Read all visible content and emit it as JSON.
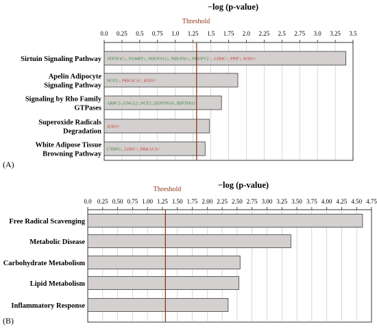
{
  "chart_data": [
    {
      "type": "bar",
      "panel_label": "(A)",
      "title": "−log (p-value)",
      "threshold_label": "Threshold",
      "threshold": 1.3,
      "xlim": [
        0,
        3.5
      ],
      "ticks": [
        "0.0",
        "0.25",
        "0.5",
        "0.75",
        "1.0",
        "1.25",
        "1.5",
        "1.75",
        "2.0",
        "2.25",
        "2.5",
        "2.75",
        "3.0",
        "3.25",
        "3.5"
      ],
      "categories": [
        [
          "Sirtuin Signaling Pathway"
        ],
        [
          "Apelin Adipocyte",
          "Signaling Pathway"
        ],
        [
          "Signaling by Rho Family",
          "GTPases"
        ],
        [
          "Superoxide Radicals",
          "Degradation"
        ],
        [
          "White Adipose Tissue",
          "Browning Pathway"
        ]
      ],
      "values": [
        3.4,
        1.88,
        1.65,
        1.48,
        1.42
      ],
      "gene_labels": [
        [
          {
            "text": "ATP5F1C↓, NAMPT↓, NDUFA12↓, NDUFS1↓, NDUFV2 ↓, ",
            "color": "#2e7d32"
          },
          {
            "text": "LDHC↑, PPIF↑, SOD1↑",
            "color": "#c0392b"
          }
        ],
        [
          {
            "text": "NCF2↓, ",
            "color": "#2e7d32"
          },
          {
            "text": "PRKACA↑, SOD1↑",
            "color": "#c0392b"
          }
        ],
        [
          {
            "text": "ARPC3↓,GNG12↓,NCF2↓,SEPTIN10↓,SEPTIN11↓",
            "color": "#2e7d32"
          }
        ],
        [
          {
            "text": "SOD1↑",
            "color": "#c0392b"
          }
        ],
        [
          {
            "text": "CTBP1↓, ",
            "color": "#2e7d32"
          },
          {
            "text": "LDHC↑, PRKACA↑",
            "color": "#c0392b"
          }
        ]
      ]
    },
    {
      "type": "bar",
      "panel_label": "(B)",
      "title": "−log (p-value)",
      "threshold_label": "Threshold",
      "threshold": 1.3,
      "xlim": [
        0,
        4.75
      ],
      "ticks": [
        "0.0",
        "0.25",
        "0.50",
        "0.75",
        "1.00",
        "1.25",
        "1.50",
        "1.75",
        "2.00",
        "2.25",
        "2.50",
        "2.75",
        "3.00",
        "3.25",
        "3.50",
        "3.75",
        "4.00",
        "4.25",
        "4.50",
        "4.75"
      ],
      "categories": [
        [
          "Free Radical Scavenging"
        ],
        [
          "Metabolic Disease"
        ],
        [
          "Carbohydrate Metabolism"
        ],
        [
          "Lipid Metabolism"
        ],
        [
          "Inflammatory Response"
        ]
      ],
      "values": [
        4.6,
        3.4,
        2.55,
        2.53,
        2.35
      ]
    }
  ]
}
